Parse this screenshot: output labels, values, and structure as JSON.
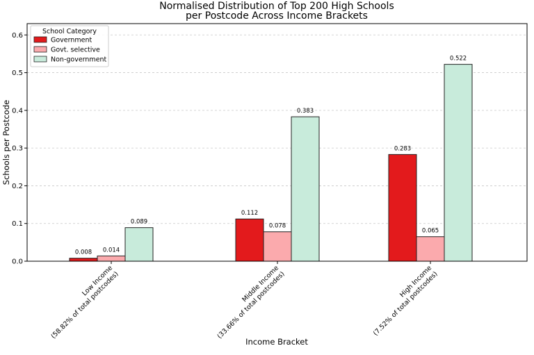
{
  "chart_data": {
    "type": "bar",
    "title_line1": "Normalised Distribution of Top 200 High Schools",
    "title_line2": "per Postcode Across Income Brackets",
    "xlabel": "Income Bracket",
    "ylabel": "Schools per Postcode",
    "ylim": [
      0,
      0.63
    ],
    "yticks": [
      "0.0",
      "0.1",
      "0.2",
      "0.3",
      "0.4",
      "0.5",
      "0.6"
    ],
    "grid": "horizontal dashed",
    "legend_position": "top-left",
    "legend_title": "School Category",
    "categories": [
      {
        "line1": "Low Income",
        "line2": "(58.82% of total postcodes)"
      },
      {
        "line1": "Middle Income",
        "line2": "(33.66% of total postcodes)"
      },
      {
        "line1": "High Income",
        "line2": "(7.52% of total postcodes)"
      }
    ],
    "series": [
      {
        "name": "Government",
        "color": "#e31a1c",
        "values": [
          0.008,
          0.112,
          0.283
        ],
        "labels": [
          "0.008",
          "0.112",
          "0.283"
        ]
      },
      {
        "name": "Govt. selective",
        "color": "#fbaaad",
        "values": [
          0.014,
          0.078,
          0.065
        ],
        "labels": [
          "0.014",
          "0.078",
          "0.065"
        ]
      },
      {
        "name": "Non-government",
        "color": "#c8ebdb",
        "values": [
          0.089,
          0.383,
          0.522
        ],
        "labels": [
          "0.089",
          "0.383",
          "0.522"
        ]
      }
    ]
  }
}
